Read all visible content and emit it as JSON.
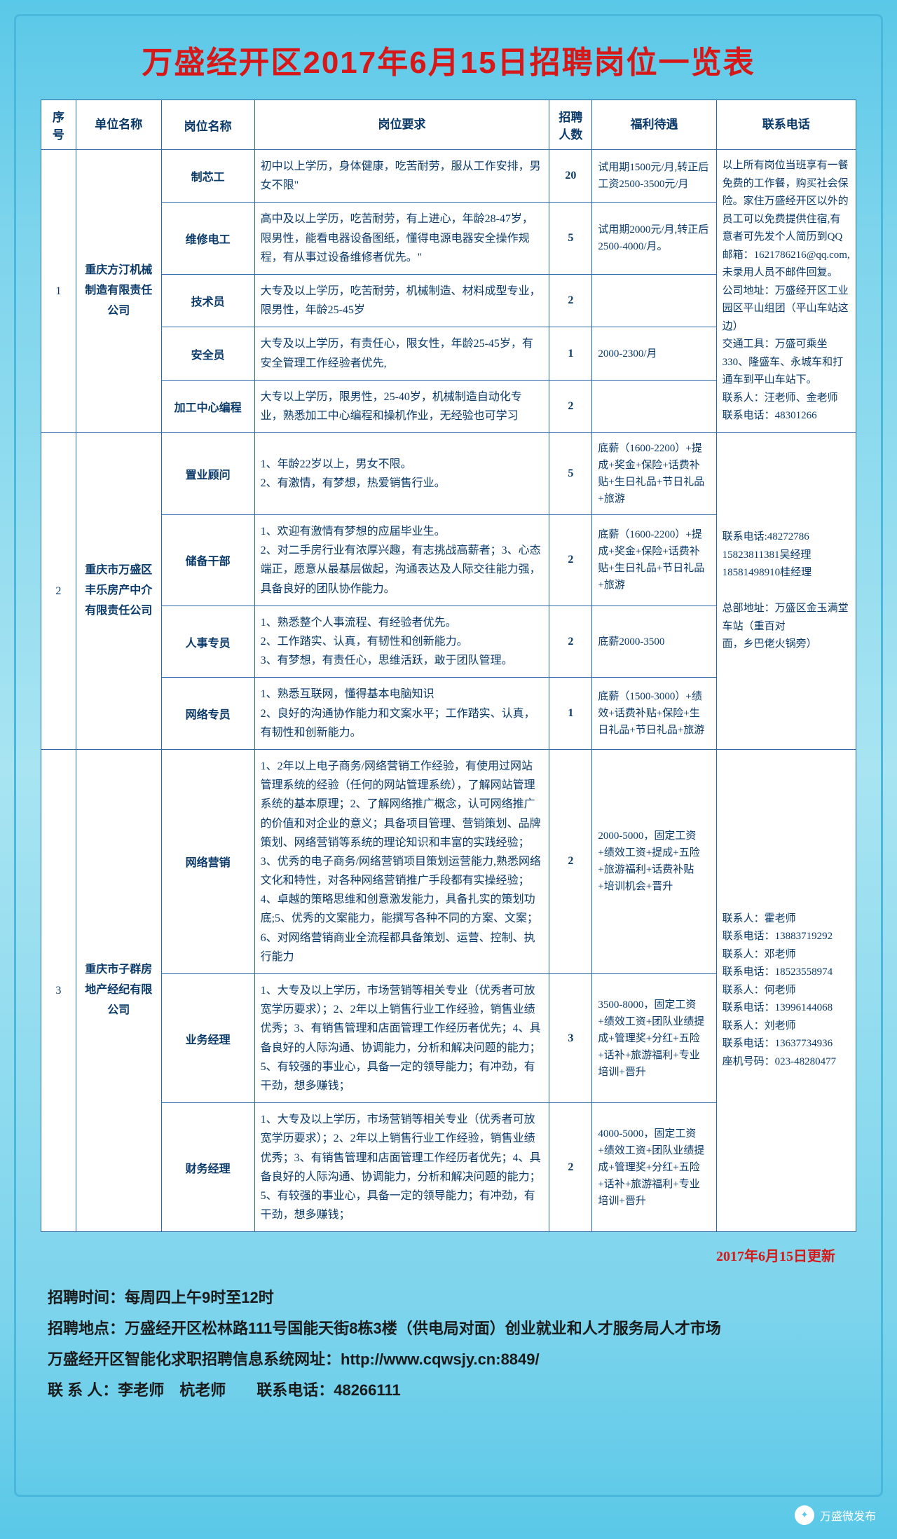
{
  "title": "万盛经开区2017年6月15日招聘岗位一览表",
  "headers": {
    "seq": "序号",
    "company": "单位名称",
    "job": "岗位名称",
    "req": "岗位要求",
    "num": "招聘人数",
    "benefit": "福利待遇",
    "contact": "联系电话"
  },
  "companies": [
    {
      "seq": "1",
      "name": "重庆方汀机械制造有限责任公司",
      "contact": "以上所有岗位当班享有一餐免费的工作餐，购买社会保险。家住万盛经开区以外的员工可以免费提供住宿,有意者可先发个人简历到QQ邮箱：1621786216@qq.com,未录用人员不邮件回复。\n公司地址：万盛经开区工业园区平山组团（平山车站这边）\n交通工具：万盛可乘坐330、隆盛车、永城车和打通车到平山车站下。\n联系人：汪老师、金老师　　联系电话：48301266",
      "jobs": [
        {
          "name": "制芯工",
          "req": "初中以上学历，身体健康，吃苦耐劳，服从工作安排，男女不限\"",
          "num": "20",
          "benefit": "试用期1500元/月,转正后工资2500-3500元/月"
        },
        {
          "name": "维修电工",
          "req": "高中及以上学历，吃苦耐劳，有上进心，年龄28-47岁，限男性，能看电器设备图纸，懂得电源电器安全操作规程，有从事过设备维修者优先。\"",
          "num": "5",
          "benefit": "试用期2000元/月,转正后2500-4000/月。"
        },
        {
          "name": "技术员",
          "req": "大专及以上学历，吃苦耐劳，机械制造、材料成型专业，限男性，年龄25-45岁",
          "num": "2",
          "benefit": ""
        },
        {
          "name": "安全员",
          "req": "大专及以上学历，有责任心，限女性，年龄25-45岁，有安全管理工作经验者优先,",
          "num": "1",
          "benefit": "2000-2300/月"
        },
        {
          "name": "加工中心编程",
          "req": "大专以上学历，限男性，25-40岁，机械制造自动化专业，熟悉加工中心编程和操机作业，无经验也可学习",
          "num": "2",
          "benefit": ""
        }
      ]
    },
    {
      "seq": "2",
      "name": "重庆市万盛区丰乐房产中介有限责任公司",
      "contact": "联系电话:48272786\n15823811381吴经理\n18581498910桂经理\n\n总部地址：万盛区金玉满堂车站（重百对\n面，乡巴佬火锅旁）",
      "jobs": [
        {
          "name": "置业顾问",
          "req": "1、年龄22岁以上，男女不限。\n2、有激情，有梦想，热爱销售行业。",
          "num": "5",
          "benefit": "底薪（1600-2200）+提成+奖金+保险+话费补贴+生日礼品+节日礼品+旅游"
        },
        {
          "name": "储备干部",
          "req": "1、欢迎有激情有梦想的应届毕业生。\n2、对二手房行业有浓厚兴趣，有志挑战高薪者；3、心态端正，愿意从最基层做起，沟通表达及人际交往能力强，具备良好的团队协作能力。",
          "num": "2",
          "benefit": "底薪（1600-2200）+提成+奖金+保险+话费补贴+生日礼品+节日礼品+旅游"
        },
        {
          "name": "人事专员",
          "req": "1、熟悉整个人事流程、有经验者优先。\n2、工作踏实、认真，有韧性和创新能力。\n3、有梦想，有责任心，思维活跃，敢于团队管理。",
          "num": "2",
          "benefit": "底薪2000-3500"
        },
        {
          "name": "网络专员",
          "req": "1、熟悉互联网，懂得基本电脑知识\n2、良好的沟通协作能力和文案水平；工作踏实、认真，有韧性和创新能力。",
          "num": "1",
          "benefit": "底薪（1500-3000）+绩效+话费补贴+保险+生日礼品+节日礼品+旅游"
        }
      ]
    },
    {
      "seq": "3",
      "name": "重庆市子群房地产经纪有限公司",
      "contact": "联系人：霍老师\n联系电话：13883719292\n联系人：邓老师\n联系电话：18523558974\n联系人：何老师\n联系电话：13996144068\n联系人：刘老师\n联系电话：13637734936\n座机号码：023-48280477",
      "jobs": [
        {
          "name": "网络营销",
          "req": "1、2年以上电子商务/网络营销工作经验，有使用过网站管理系统的经验（任何的网站管理系统），了解网站管理系统的基本原理；2、了解网络推广概念，认可网络推广的价值和对企业的意义；具备项目管理、营销策划、品牌策划、网络营销等系统的理论知识和丰富的实践经验；3、优秀的电子商务/网络营销项目策划运营能力,熟悉网络文化和特性，对各种网络营销推广手段都有实操经验；4、卓越的策略思维和创意激发能力，具备扎实的策划功底;5、优秀的文案能力，能撰写各种不同的方案、文案；6、对网络营销商业全流程都具备策划、运营、控制、执行能力",
          "num": "2",
          "benefit": "2000-5000，固定工资+绩效工资+提成+五险+旅游福利+话费补贴+培训机会+晋升"
        },
        {
          "name": "业务经理",
          "req": "1、大专及以上学历，市场营销等相关专业（优秀者可放宽学历要求）；2、2年以上销售行业工作经验，销售业绩优秀；3、有销售管理和店面管理工作经历者优先；4、具备良好的人际沟通、协调能力，分析和解决问题的能力；5、有较强的事业心，具备一定的领导能力；有冲劲，有干劲，想多赚钱；",
          "num": "3",
          "benefit": "3500-8000，固定工资+绩效工资+团队业绩提成+管理奖+分红+五险+话补+旅游福利+专业培训+晋升"
        },
        {
          "name": "财务经理",
          "req": "1、大专及以上学历，市场营销等相关专业（优秀者可放宽学历要求）；2、2年以上销售行业工作经验，销售业绩优秀；3、有销售管理和店面管理工作经历者优先；4、具备良好的人际沟通、协调能力，分析和解决问题的能力；5、有较强的事业心，具备一定的领导能力；有冲劲，有干劲，想多赚钱；",
          "num": "2",
          "benefit": "4000-5000，固定工资+绩效工资+团队业绩提成+管理奖+分红+五险+话补+旅游福利+专业培训+晋升"
        }
      ]
    }
  ],
  "update_note": "2017年6月15日更新",
  "footer": {
    "l1": "招聘时间：每周四上午9时至12时",
    "l2": "招聘地点：万盛经开区松林路111号国能天街8栋3楼（供电局对面）创业就业和人才服务局人才市场",
    "l3": "万盛经开区智能化求职招聘信息系统网址：http://www.cqwsjy.cn:8849/",
    "l4": "联 系 人：李老师　杭老师　　联系电话：48266111"
  },
  "wechat": "万盛微发布"
}
